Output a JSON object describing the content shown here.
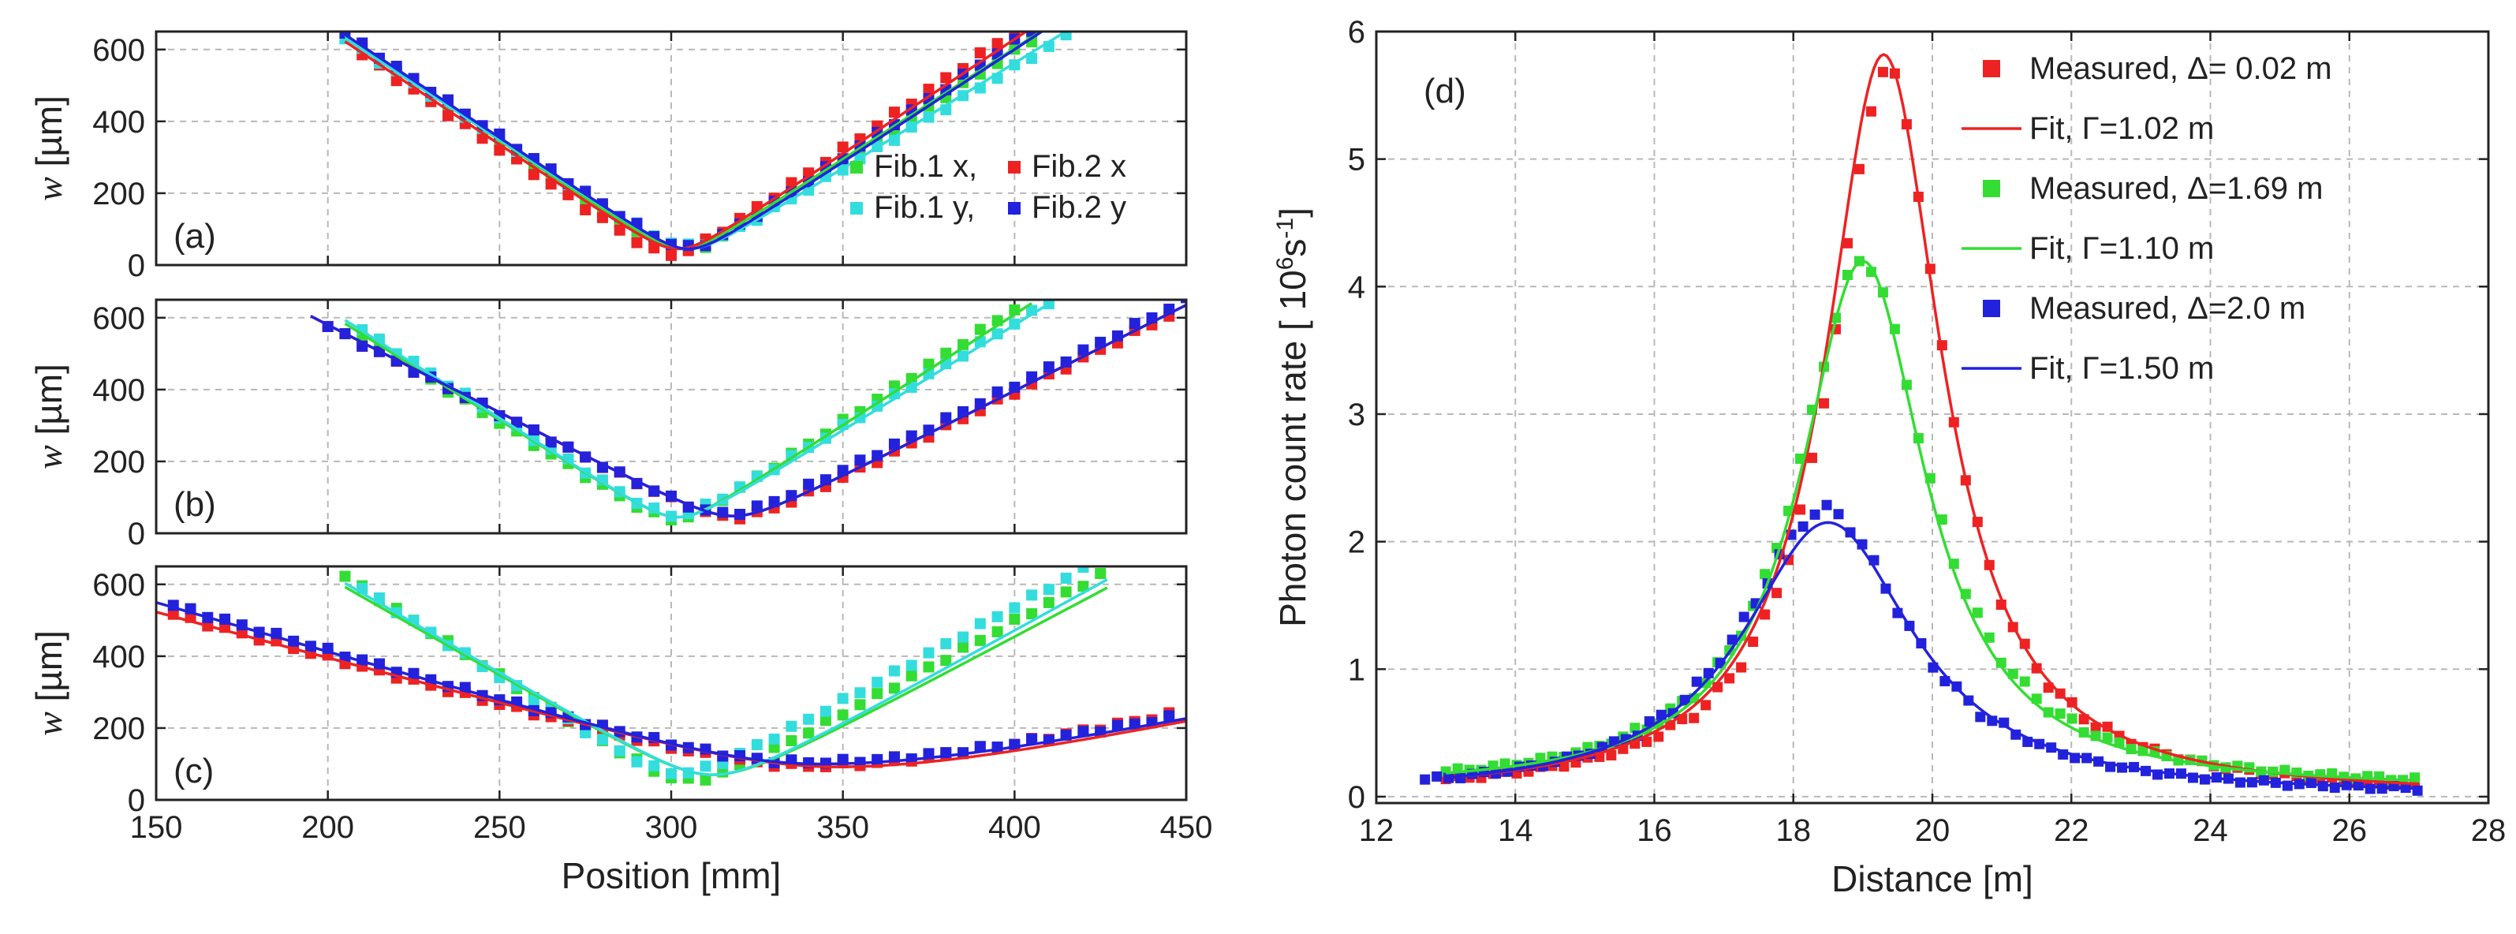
{
  "chart_data": [
    {
      "type": "scatter",
      "panel": "a",
      "panel_label": "(a)",
      "ylabel_prefix": "w",
      "ylabel_unit": " [µm]",
      "xlabel": "",
      "xlim": [
        150,
        450
      ],
      "ylim": [
        0,
        650
      ],
      "xticks": [
        150,
        200,
        250,
        300,
        350,
        400,
        450
      ],
      "yticks": [
        0,
        200,
        400,
        600
      ],
      "legend": [
        {
          "label": "Fib.1 x,",
          "color": "#33dd33"
        },
        {
          "label": "Fib.2 x",
          "color": "#ee2222"
        },
        {
          "label": "Fib.1 y,",
          "color": "#33dddd"
        },
        {
          "label": "Fib.2 y",
          "color": "#2222dd"
        }
      ],
      "fits": [
        {
          "name": "Fib.1 x",
          "color": "#33dd33",
          "x0": 303,
          "w0": 45,
          "slope_left": 6.5,
          "slope_right": 6.2,
          "xmin": 205,
          "xmax": 415
        },
        {
          "name": "Fib.2 x",
          "color": "#ee2222",
          "x0": 302,
          "w0": 45,
          "slope_left": 6.4,
          "slope_right": 6.4,
          "xmin": 205,
          "xmax": 410
        },
        {
          "name": "Fib.1 y",
          "color": "#33dddd",
          "x0": 305,
          "w0": 45,
          "slope_left": 6.3,
          "slope_right": 5.9,
          "xmin": 205,
          "xmax": 415
        },
        {
          "name": "Fib.2 y",
          "color": "#2222dd",
          "x0": 305,
          "w0": 45,
          "slope_left": 6.4,
          "slope_right": 6.3,
          "xmin": 205,
          "xmax": 410
        }
      ],
      "series": [
        {
          "name": "Fib.1 x",
          "color": "#33dd33",
          "x0": 303,
          "w0": 45,
          "slope_left": 6.5,
          "slope_right": 6.2,
          "xmin": 205,
          "xmax": 405,
          "step": 5,
          "offset": -8
        },
        {
          "name": "Fib.2 x",
          "color": "#ee2222",
          "x0": 300,
          "w0": 40,
          "slope_left": 6.6,
          "slope_right": 6.6,
          "xmin": 210,
          "xmax": 400,
          "step": 5,
          "offset": -10
        },
        {
          "name": "Fib.1 y",
          "color": "#33dddd",
          "x0": 305,
          "w0": 45,
          "slope_left": 6.2,
          "slope_right": 5.7,
          "xmin": 205,
          "xmax": 415,
          "step": 5,
          "offset": 8
        },
        {
          "name": "Fib.2 y",
          "color": "#2222dd",
          "x0": 305,
          "w0": 45,
          "slope_left": 6.4,
          "slope_right": 6.5,
          "xmin": 205,
          "xmax": 405,
          "step": 5,
          "offset": 4
        }
      ]
    },
    {
      "type": "scatter",
      "panel": "b",
      "panel_label": "(b)",
      "ylabel_prefix": "w",
      "ylabel_unit": " [µm]",
      "xlabel": "",
      "xlim": [
        150,
        450
      ],
      "ylim": [
        0,
        650
      ],
      "xticks": [
        150,
        200,
        250,
        300,
        350,
        400,
        450
      ],
      "yticks": [
        0,
        200,
        400,
        600
      ],
      "fits": [
        {
          "name": "Fib.1 x",
          "color": "#33dd33",
          "x0": 302,
          "w0": 45,
          "slope_left": 6.0,
          "slope_right": 6.2,
          "xmin": 205,
          "xmax": 405
        },
        {
          "name": "Fib.2 x",
          "color": "#ee2222",
          "x0": 318,
          "w0": 48,
          "slope_left": 4.9,
          "slope_right": 4.8,
          "xmin": 195,
          "xmax": 452
        },
        {
          "name": "Fib.1 y",
          "color": "#33dddd",
          "x0": 302,
          "w0": 45,
          "slope_left": 6.1,
          "slope_right": 5.9,
          "xmin": 205,
          "xmax": 410
        },
        {
          "name": "Fib.2 y",
          "color": "#2222dd",
          "x0": 318,
          "w0": 48,
          "slope_left": 4.9,
          "slope_right": 4.8,
          "xmin": 195,
          "xmax": 452
        }
      ],
      "series": [
        {
          "name": "Fib.1 x",
          "color": "#33dd33",
          "x0": 301,
          "w0": 40,
          "slope_left": 6.0,
          "slope_right": 6.3,
          "xmin": 210,
          "xmax": 400,
          "step": 5,
          "offset": 0
        },
        {
          "name": "Fib.2 x",
          "color": "#ee2222",
          "x0": 318,
          "w0": 50,
          "slope_left": 4.9,
          "slope_right": 4.8,
          "xmin": 200,
          "xmax": 445,
          "step": 5,
          "offset": -5
        },
        {
          "name": "Fib.1 y",
          "color": "#33dddd",
          "x0": 301,
          "w0": 40,
          "slope_left": 6.1,
          "slope_right": 5.8,
          "xmin": 210,
          "xmax": 410,
          "step": 5,
          "offset": 10
        },
        {
          "name": "Fib.2 y",
          "color": "#2222dd",
          "x0": 316,
          "w0": 50,
          "slope_left": 4.9,
          "slope_right": 4.8,
          "xmin": 200,
          "xmax": 450,
          "step": 5,
          "offset": 5
        }
      ]
    },
    {
      "type": "scatter",
      "panel": "c",
      "panel_label": "(c)",
      "ylabel_prefix": "w",
      "ylabel_unit": " [µm]",
      "xlabel": "Position [mm]",
      "xlim": [
        150,
        450
      ],
      "ylim": [
        0,
        650
      ],
      "xticks": [
        150,
        200,
        250,
        300,
        350,
        400,
        450
      ],
      "yticks": [
        0,
        200,
        400,
        600
      ],
      "fits": [
        {
          "name": "Fib.1 x",
          "color": "#33dd33",
          "x0": 312,
          "w0": 70,
          "slope_left": 5.5,
          "slope_right": 5.1,
          "xmin": 205,
          "xmax": 427
        },
        {
          "name": "Fib.2 x",
          "color": "#ee2222",
          "x0": 348,
          "w0": 92,
          "slope_left": 2.6,
          "slope_right": 1.95,
          "xmin": 150,
          "xmax": 450
        },
        {
          "name": "Fib.1 y",
          "color": "#33dddd",
          "x0": 312,
          "w0": 70,
          "slope_left": 5.6,
          "slope_right": 5.3,
          "xmin": 205,
          "xmax": 427
        },
        {
          "name": "Fib.2 y",
          "color": "#2222dd",
          "x0": 343,
          "w0": 100,
          "slope_left": 2.8,
          "slope_right": 1.9,
          "xmin": 150,
          "xmax": 450
        }
      ],
      "series": [
        {
          "name": "Fib.1 x",
          "color": "#33dd33",
          "x0": 305,
          "w0": 55,
          "slope_left": 6.2,
          "slope_right": 5.2,
          "xmin": 205,
          "xmax": 425,
          "step": 5,
          "offset": 0
        },
        {
          "name": "Fib.2 x",
          "color": "#ee2222",
          "x0": 340,
          "w0": 85,
          "slope_left": 2.7,
          "slope_right": 2.0,
          "xmin": 155,
          "xmax": 445,
          "step": 5,
          "offset": 10
        },
        {
          "name": "Fib.1 y",
          "color": "#33dddd",
          "x0": 302,
          "w0": 60,
          "slope_left": 6.2,
          "slope_right": 5.3,
          "xmin": 210,
          "xmax": 425,
          "step": 5,
          "offset": 15
        },
        {
          "name": "Fib.2 y",
          "color": "#2222dd",
          "x0": 340,
          "w0": 100,
          "slope_left": 2.85,
          "slope_right": 1.9,
          "xmin": 155,
          "xmax": 445,
          "step": 5,
          "offset": 5
        }
      ]
    },
    {
      "type": "scatter",
      "panel": "d",
      "panel_label": "(d)",
      "xlabel": "Distance [m]",
      "ylabel_main": "Photon count rate [ 10",
      "ylabel_sup1": "6",
      "ylabel_mid": "s",
      "ylabel_sup2": "-1",
      "ylabel_end": "]",
      "xlim": [
        12,
        28
      ],
      "ylim": [
        -0.05,
        6
      ],
      "xticks": [
        12,
        14,
        16,
        18,
        20,
        22,
        24,
        26,
        28
      ],
      "yticks": [
        0,
        1,
        2,
        3,
        4,
        5,
        6
      ],
      "legend": [
        {
          "label": "Measured, Δ= 0.02 m",
          "kind": "marker",
          "color": "#ee2222"
        },
        {
          "label": "Fit, Γ=1.02 m",
          "kind": "line",
          "color": "#ee2222"
        },
        {
          "label": "Measured, Δ=1.69 m",
          "kind": "marker",
          "color": "#33dd33"
        },
        {
          "label": "Fit, Γ=1.10 m",
          "kind": "line",
          "color": "#33dd33"
        },
        {
          "label": "Measured, Δ=2.0 m",
          "kind": "marker",
          "color": "#2222dd"
        },
        {
          "label": "Fit, Γ=1.50 m",
          "kind": "line",
          "color": "#2222dd"
        }
      ],
      "fits": [
        {
          "name": "Fit, Γ=1.02 m",
          "color": "#ee2222",
          "peak_x": 19.3,
          "peak_y": 5.82,
          "hwhm": 1.02,
          "base": 0.0,
          "xmin": 13.0,
          "xmax": 27.0
        },
        {
          "name": "Fit, Γ=1.10 m",
          "color": "#33dd33",
          "peak_x": 19.0,
          "peak_y": 4.2,
          "hwhm": 1.1,
          "base": 0.05,
          "xmin": 13.0,
          "xmax": 27.0
        },
        {
          "name": "Fit, Γ=1.50 m",
          "color": "#2222dd",
          "peak_x": 18.5,
          "peak_y": 2.15,
          "hwhm": 1.5,
          "base": 0.0,
          "xmin": 13.0,
          "xmax": 27.0
        }
      ],
      "series": [
        {
          "name": "Measured, Δ= 0.02 m",
          "color": "#ee2222",
          "peak_x": 19.35,
          "peak_y": 5.7,
          "hwhm": 1.0,
          "base": 0.0,
          "xmin": 13.0,
          "xmax": 27.0,
          "step": 0.17
        },
        {
          "name": "Measured, Δ=1.69 m",
          "color": "#33dd33",
          "peak_x": 19.0,
          "peak_y": 4.2,
          "hwhm": 1.15,
          "base": 0.05,
          "xmin": 13.0,
          "xmax": 27.0,
          "step": 0.17
        },
        {
          "name": "Measured, Δ=2.0 m",
          "color": "#2222dd",
          "peak_x": 18.45,
          "peak_y": 2.25,
          "hwhm": 1.45,
          "base": 0.0,
          "xmin": 12.7,
          "xmax": 27.0,
          "step": 0.17
        }
      ]
    }
  ]
}
